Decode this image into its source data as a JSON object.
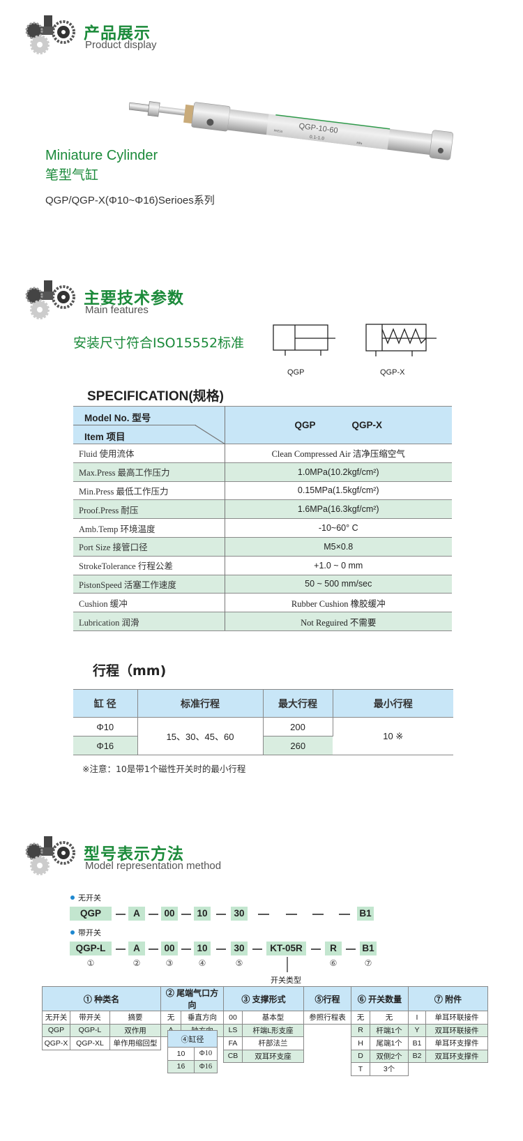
{
  "sections": [
    {
      "title": "产品展示",
      "subtitle": "Product display"
    },
    {
      "title": "主要技术参数",
      "subtitle": "Main features"
    },
    {
      "title": "型号表示方法",
      "subtitle": "Model representation method"
    }
  ],
  "product": {
    "name_en": "Miniature Cylinder",
    "name_cn": "笔型气缸",
    "series": "QGP/QGP-X(Φ10~Φ16)Serioes系列",
    "label_model": "QGP-10-60",
    "label_press": "PRESS",
    "label_range": "0.1-1.0",
    "label_unit": "MPa"
  },
  "features": {
    "iso_text": "安装尺寸符合ISO15552标准",
    "symbols": [
      "QGP",
      "QGP-X"
    ]
  },
  "spec": {
    "title": "SPECIFICATION(规格)",
    "header_model": "Model No. 型号",
    "header_item": "Item 项目",
    "models": [
      "QGP",
      "QGP-X"
    ],
    "rows": [
      {
        "item": "Fluid 使用流体",
        "value": "Clean Compressed Air  洁净压缩空气"
      },
      {
        "item": "Max.Press 最高工作压力",
        "value": "1.0MPa(10.2kgf/cm²)"
      },
      {
        "item": "Min.Press 最低工作压力",
        "value": "0.15MPa(1.5kgf/cm²)"
      },
      {
        "item": "Proof.Press 耐压",
        "value": "1.6MPa(16.3kgf/cm²)"
      },
      {
        "item": "Amb.Temp 环境温度",
        "value": "-10~60° C"
      },
      {
        "item": "Port Size 接管口径",
        "value": "M5×0.8"
      },
      {
        "item": "StrokeTolerance 行程公差",
        "value": "+1.0 ~ 0 mm"
      },
      {
        "item": "PistonSpeed 活塞工作速度",
        "value": "50 ~ 500 mm/sec"
      },
      {
        "item": "Cushion 缓冲",
        "value": "Rubber Cushion 橡胶缓冲"
      },
      {
        "item": "Lubrication 润滑",
        "value": "Not Reguired 不需要"
      }
    ]
  },
  "stroke": {
    "title": "行程（mm)",
    "headers": [
      "缸 径",
      "标准行程",
      "最大行程",
      "最小行程"
    ],
    "bores": [
      "Φ10",
      "Φ16"
    ],
    "standard": "15、30、45、60",
    "max": [
      "200",
      "260"
    ],
    "min": "10 ※",
    "note": "※注意：10是带1个磁性开关时的最小行程"
  },
  "model_code": {
    "no_switch_label": "无开关",
    "no_switch_parts": [
      "QGP",
      "A",
      "00",
      "10",
      "30",
      "B1"
    ],
    "with_switch_label": "带开关",
    "with_switch_parts": [
      "QGP-L",
      "A",
      "00",
      "10",
      "30",
      "KT-05R",
      "R",
      "B1"
    ],
    "numbers": [
      "①",
      "②",
      "③",
      "④",
      "⑤",
      "⑥",
      "⑦"
    ],
    "switch_type_label": "开关类型"
  },
  "legend": {
    "headers": [
      "① 种类名",
      "② 尾端气口方向",
      "③ 支撑形式",
      "⑤行程",
      "⑥ 开关数量",
      "⑦ 附件"
    ],
    "type_rows": [
      [
        "无开关",
        "带开关",
        "摘要"
      ],
      [
        "QGP",
        "QGP-L",
        "双作用"
      ],
      [
        "QGP-X",
        "QGP-XL",
        "单作用缩回型"
      ]
    ],
    "port_rows": [
      [
        "无",
        "垂直方向"
      ],
      [
        "A",
        "轴方向"
      ]
    ],
    "mount_rows": [
      [
        "00",
        "基本型"
      ],
      [
        "LS",
        "杆端L形支座"
      ],
      [
        "FA",
        "杆部法兰"
      ],
      [
        "CB",
        "双耳环支座"
      ]
    ],
    "stroke_ref": "参照行程表",
    "switch_rows": [
      [
        "无",
        "无"
      ],
      [
        "R",
        "杆端1个"
      ],
      [
        "H",
        "尾端1个"
      ],
      [
        "D",
        "双侧2个"
      ],
      [
        "T",
        "3个"
      ]
    ],
    "accessory_rows": [
      [
        "I",
        "单耳环联接件"
      ],
      [
        "Y",
        "双耳环联接件"
      ],
      [
        "B1",
        "单耳环支撑件"
      ],
      [
        "B2",
        "双耳环支撑件"
      ]
    ],
    "bore_header": "④缸径",
    "bore_rows": [
      [
        "10",
        "Φ10"
      ],
      [
        "16",
        "Φ16"
      ]
    ]
  },
  "colors": {
    "accent_green": "#1b8a3a",
    "header_blue": "#c8e6f7",
    "row_green": "#d9ede0",
    "code_box": "#c3e6cf"
  }
}
